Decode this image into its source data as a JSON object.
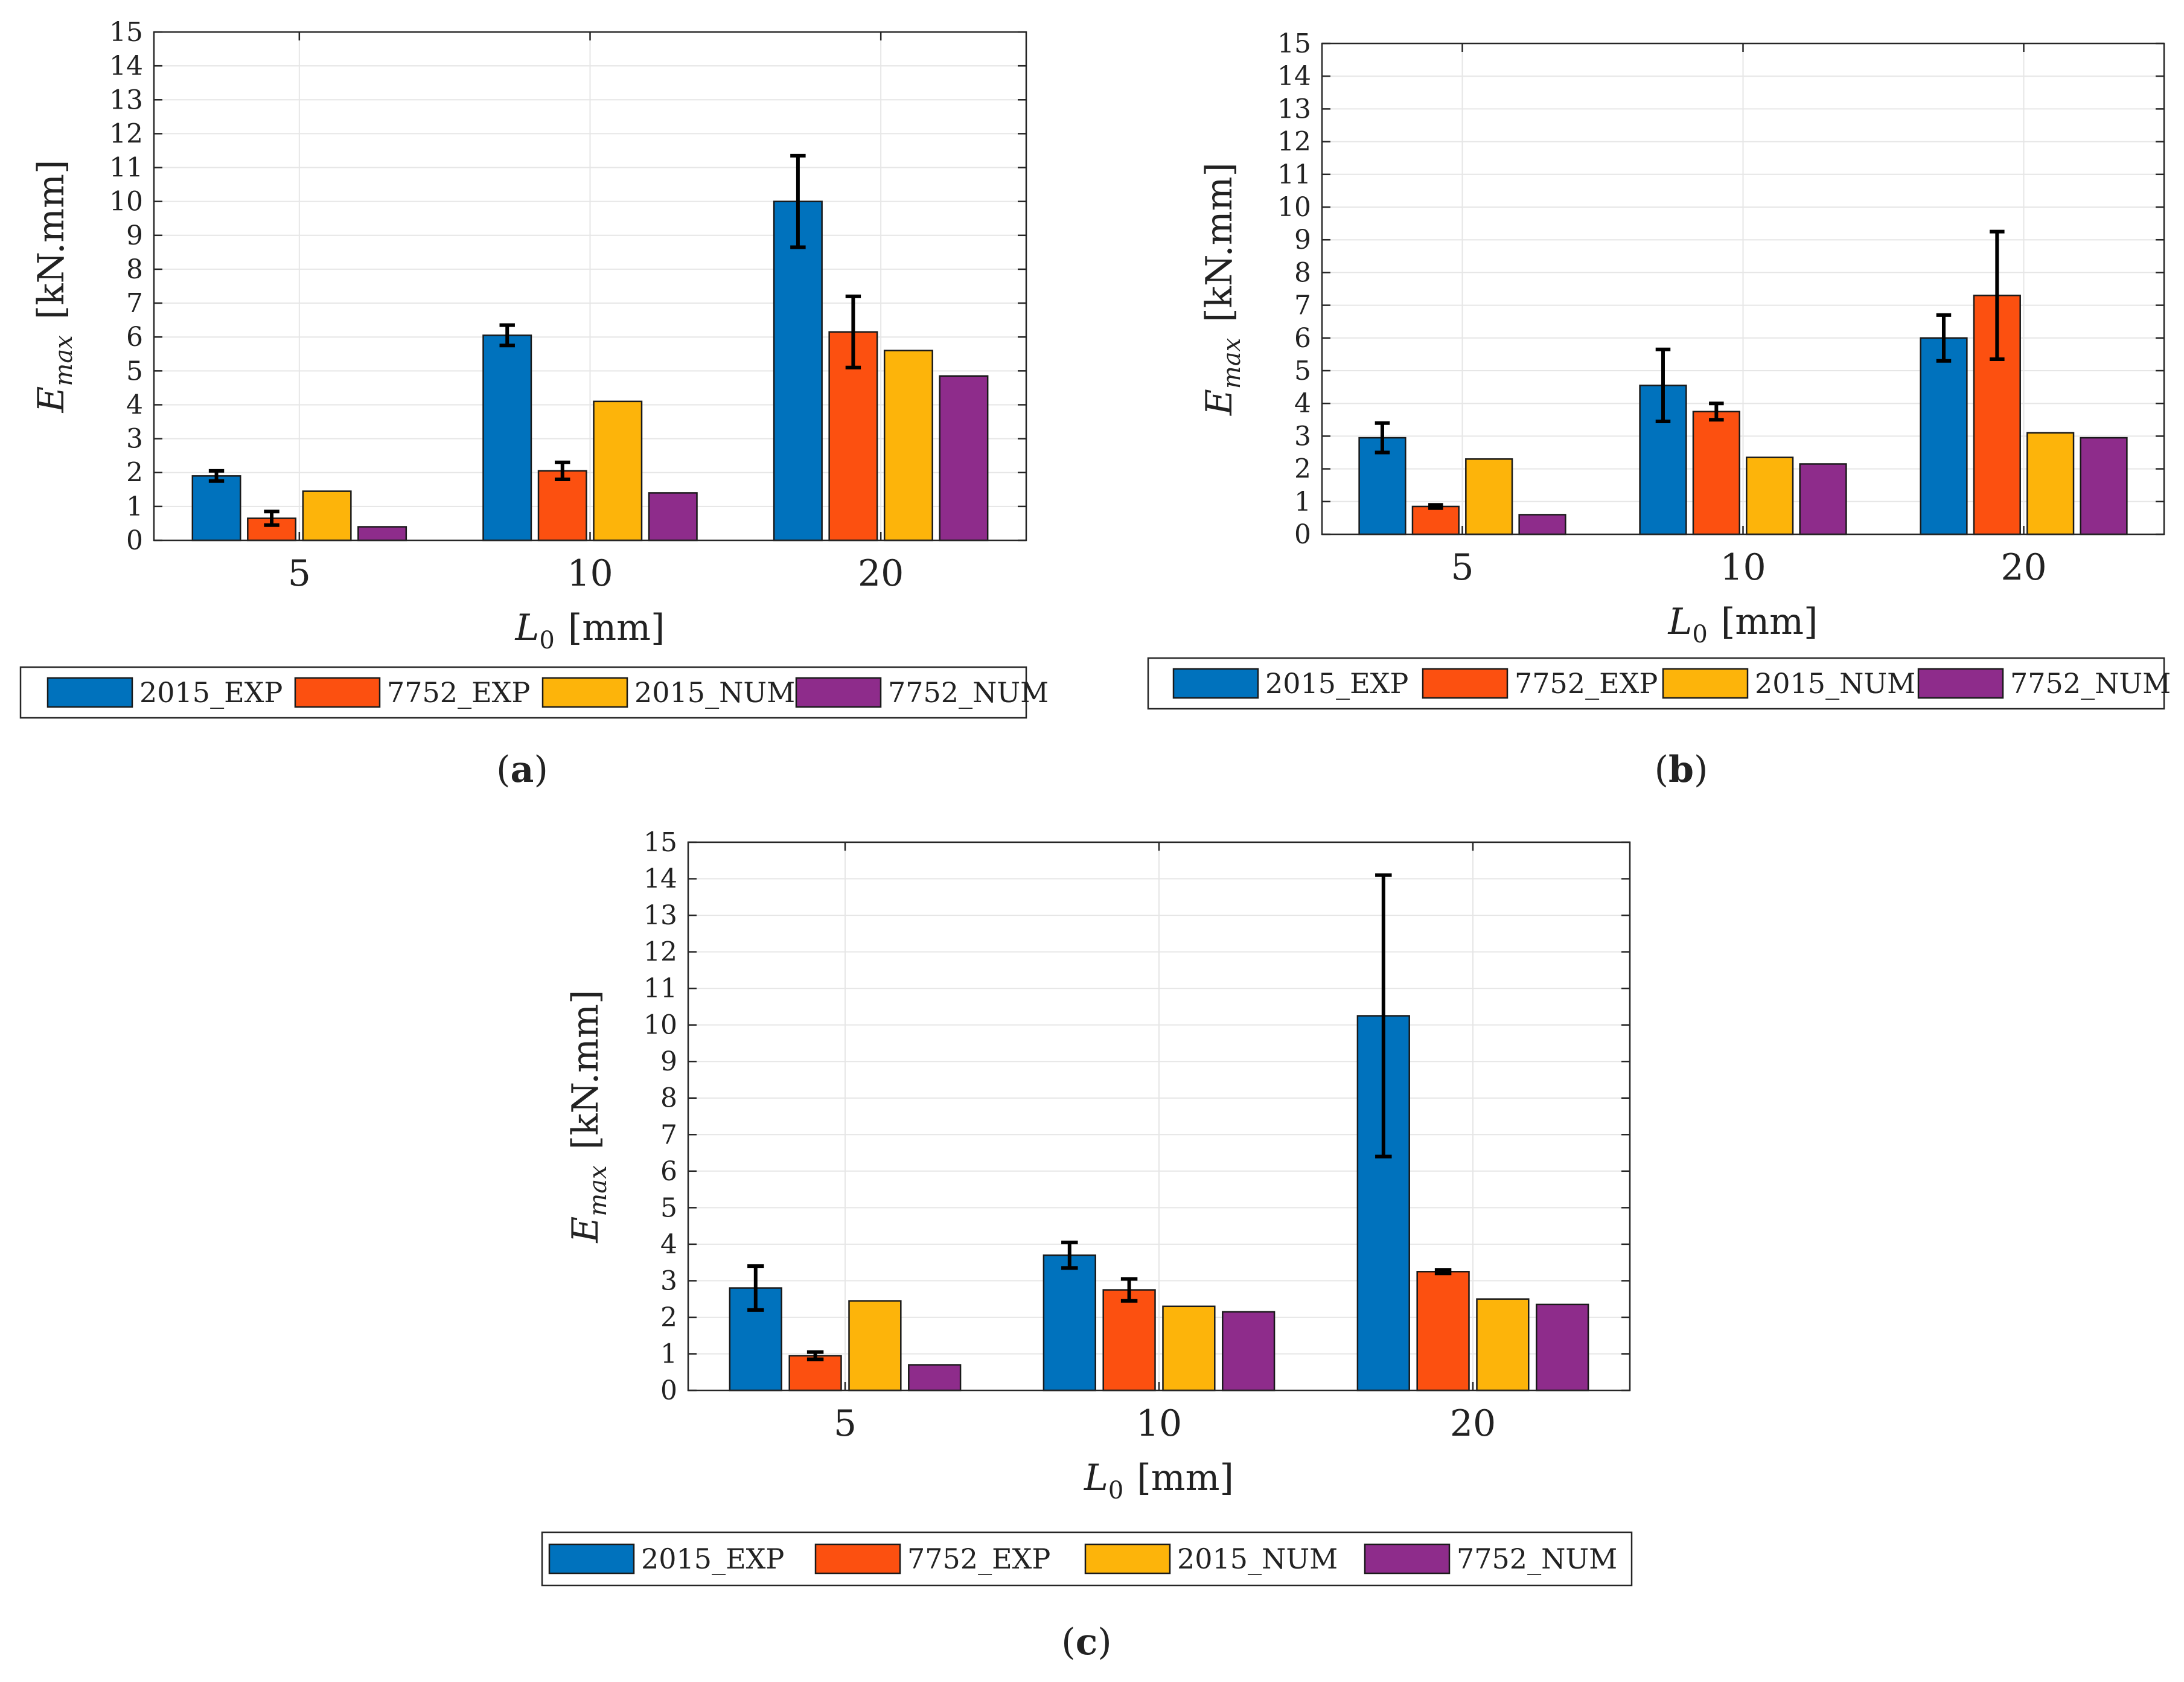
{
  "figure": {
    "captions": [
      {
        "open": "(",
        "letter": "a",
        "close": ")"
      },
      {
        "open": "(",
        "letter": "b",
        "close": ")"
      },
      {
        "open": "(",
        "letter": "c",
        "close": ")"
      }
    ]
  },
  "colors": {
    "2015_EXP": "#0072BD",
    "7752_EXP": "#FC5010",
    "2015_NUM": "#FDB40A",
    "7752_NUM": "#8E2C8B"
  },
  "chart_data": [
    {
      "type": "bar",
      "panel": "a",
      "categories": [
        "5",
        "10",
        "20"
      ],
      "xlabel_main": "L",
      "xlabel_sub": "0",
      "xlabel_unit": "[mm]",
      "ylabel_main": "E",
      "ylabel_sub": "max",
      "ylabel_unit": "[kN.mm]",
      "ylim": [
        0,
        15
      ],
      "yticks": [
        "0",
        "1",
        "2",
        "3",
        "4",
        "5",
        "6",
        "7",
        "8",
        "9",
        "10",
        "11",
        "12",
        "13",
        "14",
        "15"
      ],
      "grid": true,
      "legend_position": "bottom",
      "series": [
        {
          "name": "2015_EXP",
          "values": [
            1.9,
            6.05,
            10.0
          ],
          "errors": [
            0.15,
            0.3,
            1.35
          ]
        },
        {
          "name": "7752_EXP",
          "values": [
            0.65,
            2.05,
            6.15
          ],
          "errors": [
            0.2,
            0.25,
            1.05
          ]
        },
        {
          "name": "2015_NUM",
          "values": [
            1.45,
            4.1,
            5.6
          ],
          "errors": null
        },
        {
          "name": "7752_NUM",
          "values": [
            0.4,
            1.4,
            4.85
          ],
          "errors": null
        }
      ]
    },
    {
      "type": "bar",
      "panel": "b",
      "categories": [
        "5",
        "10",
        "20"
      ],
      "xlabel_main": "L",
      "xlabel_sub": "0",
      "xlabel_unit": "[mm]",
      "ylabel_main": "E",
      "ylabel_sub": "max",
      "ylabel_unit": "[kN.mm]",
      "ylim": [
        0,
        15
      ],
      "yticks": [
        "0",
        "1",
        "2",
        "3",
        "4",
        "5",
        "6",
        "7",
        "8",
        "9",
        "10",
        "11",
        "12",
        "13",
        "14",
        "15"
      ],
      "grid": true,
      "legend_position": "bottom",
      "series": [
        {
          "name": "2015_EXP",
          "values": [
            2.95,
            4.55,
            6.0
          ],
          "errors": [
            0.45,
            1.1,
            0.7
          ]
        },
        {
          "name": "7752_EXP",
          "values": [
            0.85,
            3.75,
            7.3
          ],
          "errors": [
            0.05,
            0.25,
            1.95
          ]
        },
        {
          "name": "2015_NUM",
          "values": [
            2.3,
            2.35,
            3.1
          ],
          "errors": null
        },
        {
          "name": "7752_NUM",
          "values": [
            0.6,
            2.15,
            2.95
          ],
          "errors": null
        }
      ]
    },
    {
      "type": "bar",
      "panel": "c",
      "categories": [
        "5",
        "10",
        "20"
      ],
      "xlabel_main": "L",
      "xlabel_sub": "0",
      "xlabel_unit": "[mm]",
      "ylabel_main": "E",
      "ylabel_sub": "max",
      "ylabel_unit": "[kN.mm]",
      "ylim": [
        0,
        15
      ],
      "yticks": [
        "0",
        "1",
        "2",
        "3",
        "4",
        "5",
        "6",
        "7",
        "8",
        "9",
        "10",
        "11",
        "12",
        "13",
        "14",
        "15"
      ],
      "grid": true,
      "legend_position": "bottom",
      "series": [
        {
          "name": "2015_EXP",
          "values": [
            2.8,
            3.7,
            10.25
          ],
          "errors": [
            0.6,
            0.35,
            3.85
          ]
        },
        {
          "name": "7752_EXP",
          "values": [
            0.95,
            2.75,
            3.25
          ],
          "errors": [
            0.1,
            0.3,
            0.05
          ]
        },
        {
          "name": "2015_NUM",
          "values": [
            2.45,
            2.3,
            2.5
          ],
          "errors": null
        },
        {
          "name": "7752_NUM",
          "values": [
            0.7,
            2.15,
            2.35
          ],
          "errors": null
        }
      ]
    }
  ]
}
